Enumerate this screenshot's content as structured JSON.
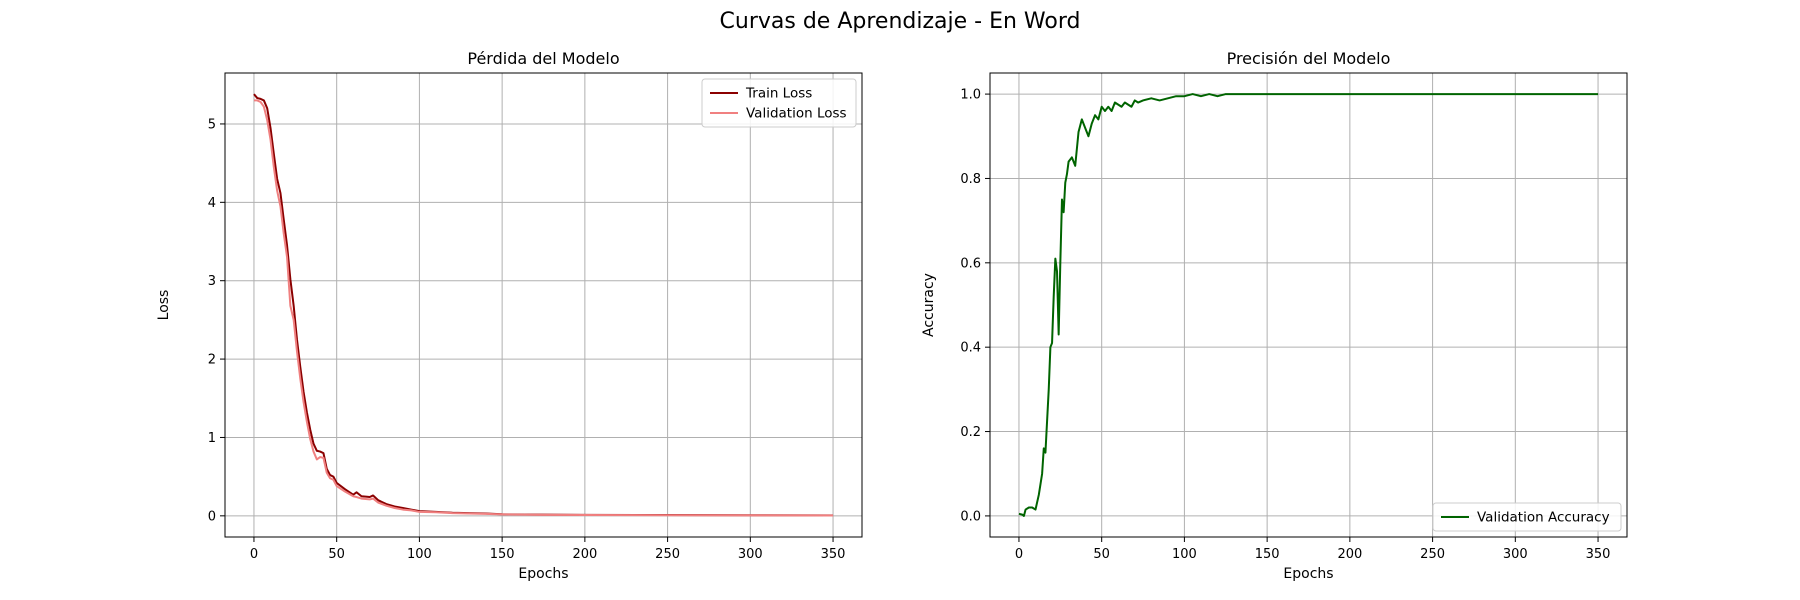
{
  "figure": {
    "suptitle": "Curvas de Aprendizaje - En Word"
  },
  "chart_data": [
    {
      "type": "line",
      "title": "Pérdida del Modelo",
      "xlabel": "Epochs",
      "ylabel": "Loss",
      "xlim": [
        -17.5,
        367.5
      ],
      "ylim": [
        -0.27,
        5.65
      ],
      "xticks": [
        0,
        50,
        100,
        150,
        200,
        250,
        300,
        350
      ],
      "yticks": [
        0,
        1,
        2,
        3,
        4,
        5
      ],
      "grid": true,
      "legend_position": "top-right",
      "series": [
        {
          "name": "Train Loss",
          "color": "#8b0000",
          "x": [
            0,
            2,
            4,
            6,
            8,
            10,
            12,
            14,
            16,
            18,
            20,
            22,
            24,
            26,
            28,
            30,
            32,
            34,
            36,
            38,
            40,
            42,
            44,
            46,
            48,
            50,
            55,
            60,
            62,
            65,
            70,
            72,
            75,
            80,
            85,
            90,
            95,
            100,
            110,
            120,
            130,
            140,
            150,
            175,
            200,
            250,
            300,
            350
          ],
          "y": [
            5.38,
            5.33,
            5.32,
            5.3,
            5.2,
            4.95,
            4.62,
            4.3,
            4.12,
            3.78,
            3.45,
            3.02,
            2.68,
            2.25,
            1.9,
            1.58,
            1.32,
            1.1,
            0.92,
            0.83,
            0.82,
            0.8,
            0.6,
            0.52,
            0.5,
            0.42,
            0.34,
            0.27,
            0.3,
            0.25,
            0.24,
            0.26,
            0.2,
            0.15,
            0.12,
            0.1,
            0.08,
            0.06,
            0.05,
            0.04,
            0.035,
            0.03,
            0.02,
            0.015,
            0.012,
            0.01,
            0.008,
            0.006
          ]
        },
        {
          "name": "Validation Loss",
          "color": "#f08080",
          "x": [
            0,
            2,
            4,
            6,
            8,
            10,
            12,
            14,
            16,
            18,
            20,
            22,
            24,
            26,
            28,
            30,
            32,
            34,
            36,
            38,
            40,
            42,
            44,
            46,
            48,
            50,
            55,
            60,
            62,
            65,
            70,
            72,
            75,
            80,
            85,
            90,
            95,
            100,
            110,
            120,
            130,
            140,
            150,
            175,
            200,
            250,
            300,
            350
          ],
          "y": [
            5.3,
            5.3,
            5.28,
            5.22,
            5.05,
            4.8,
            4.45,
            4.15,
            3.95,
            3.6,
            3.3,
            2.68,
            2.5,
            2.1,
            1.75,
            1.45,
            1.2,
            0.98,
            0.82,
            0.72,
            0.75,
            0.74,
            0.55,
            0.48,
            0.46,
            0.38,
            0.31,
            0.25,
            0.24,
            0.22,
            0.21,
            0.22,
            0.17,
            0.13,
            0.1,
            0.08,
            0.07,
            0.05,
            0.045,
            0.035,
            0.03,
            0.025,
            0.018,
            0.012,
            0.01,
            0.008,
            0.006,
            0.005
          ]
        }
      ]
    },
    {
      "type": "line",
      "title": "Precisión del Modelo",
      "xlabel": "Epochs",
      "ylabel": "Accuracy",
      "xlim": [
        -17.5,
        367.5
      ],
      "ylim": [
        -0.05,
        1.05
      ],
      "xticks": [
        0,
        50,
        100,
        150,
        200,
        250,
        300,
        350
      ],
      "yticks": [
        0.0,
        0.2,
        0.4,
        0.6,
        0.8,
        1.0
      ],
      "ytick_labels": [
        "0.0",
        "0.2",
        "0.4",
        "0.6",
        "0.8",
        "1.0"
      ],
      "grid": true,
      "legend_position": "bottom-right",
      "series": [
        {
          "name": "Validation Accuracy",
          "color": "#006400",
          "x": [
            0,
            2,
            3,
            4,
            6,
            8,
            10,
            12,
            14,
            15,
            16,
            18,
            19,
            20,
            21,
            22,
            23,
            24,
            25,
            26,
            27,
            28,
            29,
            30,
            32,
            34,
            36,
            38,
            40,
            42,
            44,
            46,
            48,
            50,
            52,
            54,
            56,
            58,
            60,
            62,
            64,
            66,
            68,
            70,
            72,
            75,
            80,
            85,
            90,
            95,
            100,
            105,
            110,
            115,
            120,
            125,
            130,
            140,
            150,
            200,
            250,
            300,
            350
          ],
          "y": [
            0.005,
            0.003,
            0.0,
            0.015,
            0.02,
            0.02,
            0.015,
            0.05,
            0.1,
            0.16,
            0.15,
            0.3,
            0.4,
            0.41,
            0.52,
            0.61,
            0.58,
            0.43,
            0.6,
            0.75,
            0.72,
            0.79,
            0.81,
            0.84,
            0.85,
            0.83,
            0.91,
            0.94,
            0.92,
            0.9,
            0.93,
            0.95,
            0.94,
            0.97,
            0.96,
            0.97,
            0.96,
            0.98,
            0.975,
            0.97,
            0.98,
            0.975,
            0.97,
            0.985,
            0.98,
            0.985,
            0.99,
            0.985,
            0.99,
            0.995,
            0.995,
            1.0,
            0.995,
            1.0,
            0.995,
            1.0,
            1.0,
            1.0,
            1.0,
            1.0,
            1.0,
            1.0,
            1.0
          ]
        }
      ]
    }
  ]
}
